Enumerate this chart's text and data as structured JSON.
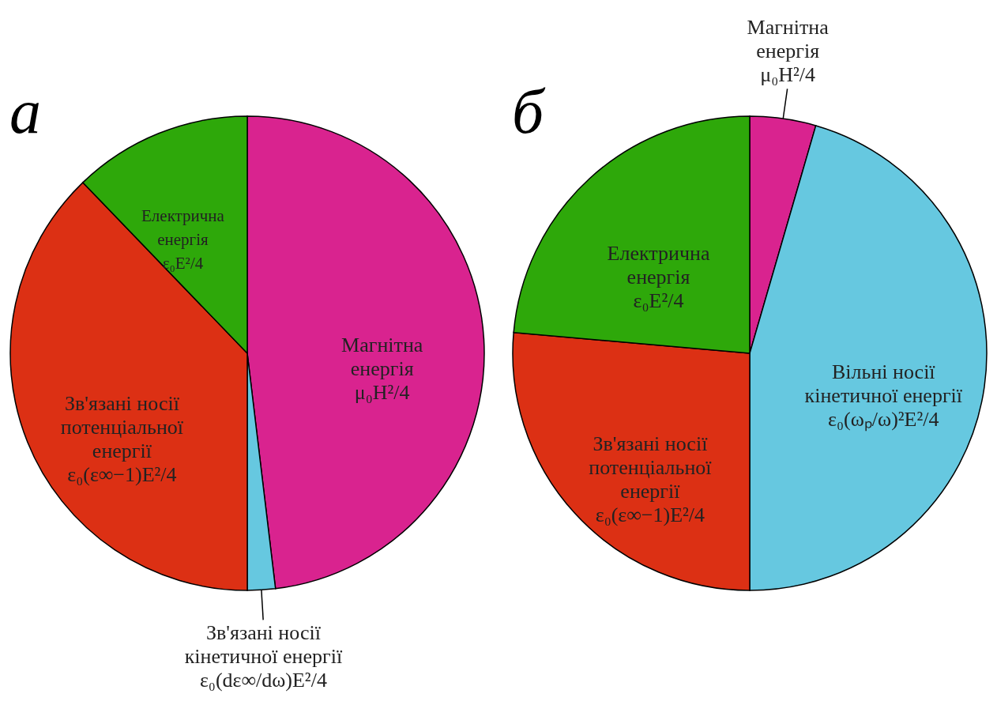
{
  "chart_data": [
    {
      "type": "pie",
      "title": "а",
      "categories": [
        "Магнітна\nенергія\nμ₀H²/4",
        "Зв'язані носії\nкінетичної енергії\nε₀(dε∞/dω)E²/4",
        "Зв'язані носії\nпотенціальної\nенергії\nε₀(ε∞−1)E²/4",
        "Електрична\nенергія\nε₀E²/4"
      ],
      "values": [
        48.1,
        1.9,
        37.8,
        12.2
      ],
      "colors": [
        "#d9238f",
        "#66c8e0",
        "#dc3014",
        "#2ea80a"
      ]
    },
    {
      "type": "pie",
      "title": "б",
      "categories": [
        "Магнітна\nенергія\nμ₀H²/4",
        "Вільні носії\nкінетичної енергії\nε₀(ωₚ/ω)²E²/4",
        "Зв'язані носії\nпотенціальної\nенергії\nε₀(ε∞−1)E²/4",
        "Електрична\nенергія\nε₀E²/4"
      ],
      "values": [
        4.5,
        45.5,
        26.4,
        23.6
      ],
      "colors": [
        "#d9238f",
        "#66c8e0",
        "#dc3014",
        "#2ea80a"
      ]
    }
  ]
}
